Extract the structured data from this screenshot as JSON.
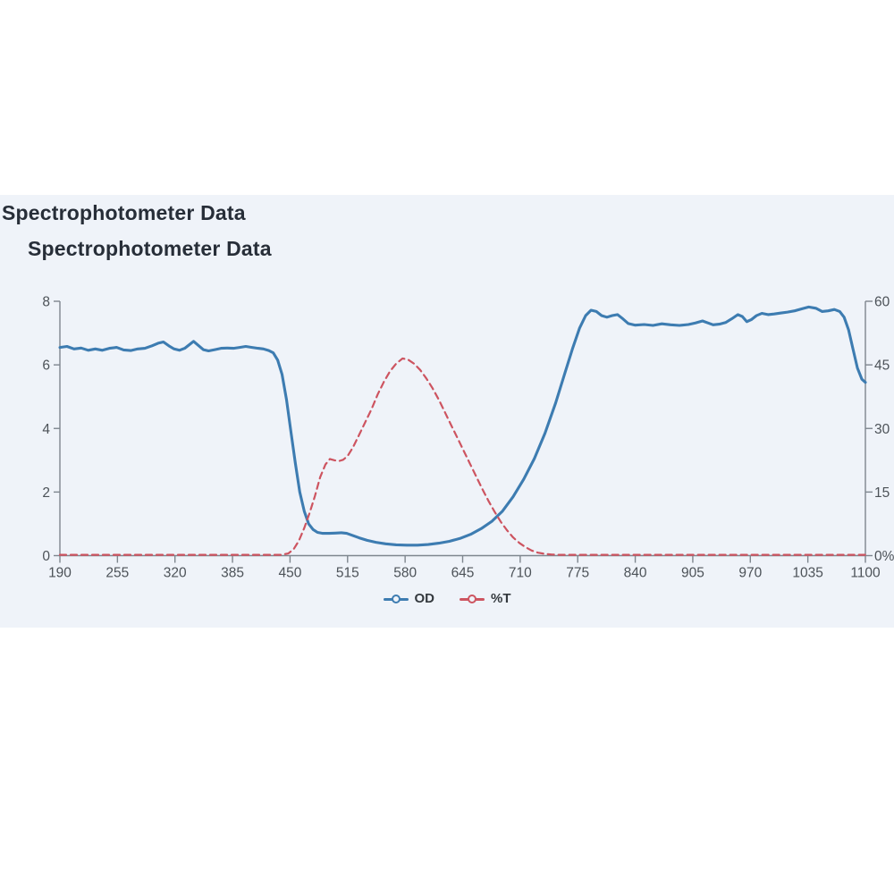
{
  "page": {
    "background": "#ffffff",
    "panel_color": "#eff3f9"
  },
  "titles": {
    "primary": "Spectrophotometer Data",
    "secondary": "Spectrophotometer Data"
  },
  "legend": [
    {
      "label": "OD",
      "color": "#3d7cb1"
    },
    {
      "label": "%T",
      "color": "#cd5460"
    }
  ],
  "axes": {
    "x": {
      "ticks": [
        190,
        255,
        320,
        385,
        450,
        515,
        580,
        645,
        710,
        775,
        840,
        905,
        970,
        1035,
        1100
      ]
    },
    "y_left": {
      "ticks": [
        0,
        2,
        4,
        6,
        8
      ],
      "labels": [
        "0",
        "2",
        "4",
        "6",
        "8"
      ]
    },
    "y_right": {
      "ticks": [
        0,
        15,
        30,
        45,
        60
      ],
      "labels": [
        "0%",
        "15",
        "30",
        "45",
        "60"
      ]
    },
    "axis_color": "#7e868e",
    "tick_text_color": "#4c5258"
  },
  "chart_data": {
    "type": "line",
    "title": "Spectrophotometer Data",
    "xlabel": "",
    "x_range": [
      190,
      1100
    ],
    "y_left_label": "OD",
    "y_left_range": [
      0,
      8
    ],
    "y_right_label": "%T",
    "y_right_range": [
      0,
      60
    ],
    "grid": false,
    "legend_position": "bottom",
    "series": [
      {
        "name": "OD",
        "axis": "left",
        "color": "#3d7cb1",
        "style": "solid",
        "points": [
          [
            190,
            6.55
          ],
          [
            198,
            6.58
          ],
          [
            206,
            6.5
          ],
          [
            214,
            6.53
          ],
          [
            222,
            6.46
          ],
          [
            230,
            6.5
          ],
          [
            238,
            6.46
          ],
          [
            246,
            6.52
          ],
          [
            254,
            6.55
          ],
          [
            262,
            6.47
          ],
          [
            270,
            6.45
          ],
          [
            278,
            6.5
          ],
          [
            286,
            6.52
          ],
          [
            294,
            6.6
          ],
          [
            301,
            6.68
          ],
          [
            307,
            6.72
          ],
          [
            313,
            6.6
          ],
          [
            319,
            6.5
          ],
          [
            325,
            6.46
          ],
          [
            331,
            6.52
          ],
          [
            337,
            6.65
          ],
          [
            341,
            6.74
          ],
          [
            346,
            6.62
          ],
          [
            352,
            6.48
          ],
          [
            358,
            6.44
          ],
          [
            365,
            6.48
          ],
          [
            372,
            6.52
          ],
          [
            379,
            6.53
          ],
          [
            386,
            6.52
          ],
          [
            393,
            6.55
          ],
          [
            400,
            6.58
          ],
          [
            407,
            6.55
          ],
          [
            414,
            6.52
          ],
          [
            420,
            6.5
          ],
          [
            426,
            6.45
          ],
          [
            431,
            6.38
          ],
          [
            436,
            6.15
          ],
          [
            441,
            5.7
          ],
          [
            446,
            4.9
          ],
          [
            451,
            3.9
          ],
          [
            456,
            2.9
          ],
          [
            461,
            2.0
          ],
          [
            466,
            1.4
          ],
          [
            471,
            1.0
          ],
          [
            476,
            0.82
          ],
          [
            481,
            0.73
          ],
          [
            487,
            0.7
          ],
          [
            494,
            0.7
          ],
          [
            501,
            0.71
          ],
          [
            508,
            0.72
          ],
          [
            514,
            0.7
          ],
          [
            520,
            0.64
          ],
          [
            528,
            0.56
          ],
          [
            537,
            0.48
          ],
          [
            547,
            0.42
          ],
          [
            558,
            0.37
          ],
          [
            570,
            0.34
          ],
          [
            582,
            0.33
          ],
          [
            594,
            0.33
          ],
          [
            606,
            0.35
          ],
          [
            618,
            0.39
          ],
          [
            630,
            0.45
          ],
          [
            642,
            0.54
          ],
          [
            654,
            0.67
          ],
          [
            666,
            0.85
          ],
          [
            678,
            1.08
          ],
          [
            690,
            1.4
          ],
          [
            702,
            1.85
          ],
          [
            714,
            2.4
          ],
          [
            726,
            3.05
          ],
          [
            738,
            3.85
          ],
          [
            750,
            4.8
          ],
          [
            760,
            5.7
          ],
          [
            769,
            6.5
          ],
          [
            777,
            7.15
          ],
          [
            784,
            7.55
          ],
          [
            790,
            7.72
          ],
          [
            796,
            7.68
          ],
          [
            802,
            7.55
          ],
          [
            808,
            7.5
          ],
          [
            814,
            7.55
          ],
          [
            820,
            7.58
          ],
          [
            826,
            7.45
          ],
          [
            832,
            7.3
          ],
          [
            840,
            7.25
          ],
          [
            850,
            7.27
          ],
          [
            860,
            7.24
          ],
          [
            870,
            7.29
          ],
          [
            880,
            7.26
          ],
          [
            890,
            7.24
          ],
          [
            900,
            7.27
          ],
          [
            908,
            7.32
          ],
          [
            916,
            7.38
          ],
          [
            922,
            7.32
          ],
          [
            928,
            7.26
          ],
          [
            935,
            7.28
          ],
          [
            942,
            7.33
          ],
          [
            949,
            7.45
          ],
          [
            956,
            7.58
          ],
          [
            961,
            7.52
          ],
          [
            966,
            7.36
          ],
          [
            971,
            7.42
          ],
          [
            977,
            7.55
          ],
          [
            983,
            7.62
          ],
          [
            990,
            7.58
          ],
          [
            997,
            7.6
          ],
          [
            1004,
            7.63
          ],
          [
            1012,
            7.66
          ],
          [
            1020,
            7.7
          ],
          [
            1028,
            7.76
          ],
          [
            1036,
            7.82
          ],
          [
            1044,
            7.78
          ],
          [
            1051,
            7.68
          ],
          [
            1058,
            7.7
          ],
          [
            1065,
            7.74
          ],
          [
            1071,
            7.68
          ],
          [
            1076,
            7.5
          ],
          [
            1081,
            7.1
          ],
          [
            1086,
            6.5
          ],
          [
            1091,
            5.9
          ],
          [
            1096,
            5.55
          ],
          [
            1100,
            5.45
          ]
        ]
      },
      {
        "name": "%T",
        "axis": "right",
        "color": "#cd5460",
        "style": "dashed",
        "points": [
          [
            190,
            0.2
          ],
          [
            250,
            0.2
          ],
          [
            320,
            0.2
          ],
          [
            385,
            0.2
          ],
          [
            420,
            0.2
          ],
          [
            440,
            0.2
          ],
          [
            448,
            0.5
          ],
          [
            454,
            1.5
          ],
          [
            460,
            3.5
          ],
          [
            466,
            6.5
          ],
          [
            472,
            10
          ],
          [
            478,
            14
          ],
          [
            484,
            18.5
          ],
          [
            490,
            21.5
          ],
          [
            495,
            22.8
          ],
          [
            500,
            22.5
          ],
          [
            505,
            22.3
          ],
          [
            510,
            22.6
          ],
          [
            515,
            23.5
          ],
          [
            521,
            25.5
          ],
          [
            528,
            28.5
          ],
          [
            535,
            31.5
          ],
          [
            542,
            34.5
          ],
          [
            549,
            38
          ],
          [
            556,
            41
          ],
          [
            563,
            43.5
          ],
          [
            570,
            45.3
          ],
          [
            577,
            46.5
          ],
          [
            583,
            46.3
          ],
          [
            590,
            45.3
          ],
          [
            597,
            43.8
          ],
          [
            604,
            41.8
          ],
          [
            611,
            39.5
          ],
          [
            618,
            36.8
          ],
          [
            625,
            33.8
          ],
          [
            632,
            30.8
          ],
          [
            639,
            27.8
          ],
          [
            646,
            24.8
          ],
          [
            653,
            21.8
          ],
          [
            660,
            18.8
          ],
          [
            667,
            15.8
          ],
          [
            674,
            13
          ],
          [
            681,
            10.4
          ],
          [
            688,
            8
          ],
          [
            695,
            6
          ],
          [
            702,
            4.3
          ],
          [
            709,
            3
          ],
          [
            716,
            2
          ],
          [
            723,
            1.2
          ],
          [
            730,
            0.7
          ],
          [
            738,
            0.4
          ],
          [
            746,
            0.25
          ],
          [
            755,
            0.2
          ],
          [
            775,
            0.2
          ],
          [
            840,
            0.2
          ],
          [
            905,
            0.2
          ],
          [
            970,
            0.2
          ],
          [
            1035,
            0.2
          ],
          [
            1100,
            0.2
          ]
        ]
      }
    ]
  }
}
